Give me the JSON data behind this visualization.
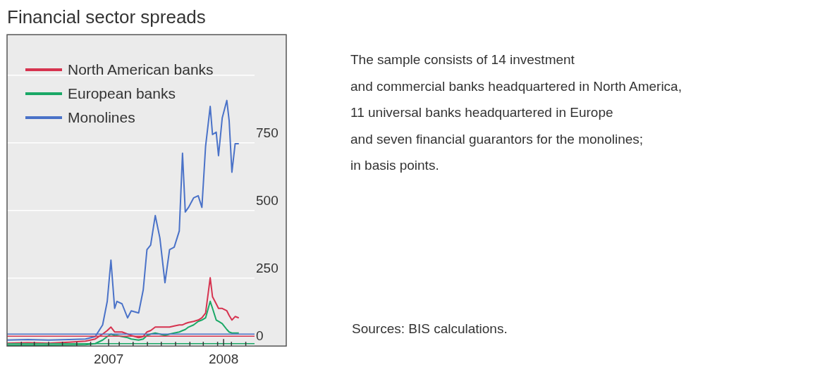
{
  "chart_data": {
    "type": "line",
    "title": "Financial sector spreads",
    "x": [
      "2007-01-01",
      "2007-02-15",
      "2007-04-01",
      "2007-05-15",
      "2007-06-20",
      "2007-07-11",
      "2007-07-27",
      "2007-08-06",
      "2007-08-14",
      "2007-08-22",
      "2007-08-27",
      "2007-09-07",
      "2007-09-19",
      "2007-09-27",
      "2007-10-13",
      "2007-10-23",
      "2007-10-31",
      "2007-11-08",
      "2007-11-18",
      "2007-11-28",
      "2007-12-09",
      "2007-12-19",
      "2007-12-29",
      "2008-01-09",
      "2008-01-16",
      "2008-01-22",
      "2008-01-29",
      "2008-02-09",
      "2008-02-19",
      "2008-02-27",
      "2008-03-06",
      "2008-03-16",
      "2008-03-21",
      "2008-03-29",
      "2008-04-03",
      "2008-04-11",
      "2008-04-21",
      "2008-04-26",
      "2008-05-02",
      "2008-05-09",
      "2008-05-17"
    ],
    "series": [
      {
        "name": "North American banks",
        "color": "#d6334f",
        "values": [
          10,
          12,
          10,
          14,
          18,
          26,
          44,
          57,
          70,
          52,
          52,
          52,
          44,
          39,
          31,
          35,
          52,
          57,
          70,
          70,
          70,
          70,
          74,
          78,
          78,
          83,
          87,
          91,
          96,
          104,
          122,
          252,
          182,
          156,
          139,
          139,
          130,
          113,
          96,
          109,
          104
        ]
      },
      {
        "name": "European banks",
        "color": "#1aa866",
        "values": [
          3,
          4,
          3,
          4,
          5,
          9,
          22,
          35,
          44,
          39,
          39,
          35,
          31,
          26,
          22,
          26,
          39,
          44,
          48,
          44,
          39,
          44,
          48,
          52,
          57,
          61,
          70,
          78,
          91,
          96,
          104,
          165,
          139,
          96,
          91,
          83,
          61,
          52,
          48,
          48,
          48
        ]
      },
      {
        "name": "Monolines",
        "color": "#4a72c8",
        "values": [
          22,
          24,
          22,
          24,
          26,
          35,
          78,
          165,
          317,
          139,
          165,
          156,
          104,
          130,
          122,
          208,
          356,
          373,
          482,
          399,
          234,
          356,
          365,
          425,
          712,
          495,
          512,
          547,
          555,
          512,
          738,
          885,
          781,
          790,
          703,
          842,
          907,
          833,
          642,
          747,
          747
        ]
      }
    ],
    "ref_lines": [
      {
        "axis": "y",
        "value": 44,
        "color": "#4a72c8"
      },
      {
        "axis": "y",
        "value": 36,
        "color": "#d6334f"
      },
      {
        "axis": "y",
        "value": 9,
        "color": "#1aa866"
      }
    ],
    "xlim": [
      "2007-01-01",
      "2008-06-20"
    ],
    "xticks": [
      {
        "value": "2007-02-01",
        "label": null
      },
      {
        "value": "2007-03-01",
        "label": null
      },
      {
        "value": "2007-04-01",
        "label": null
      },
      {
        "value": "2007-05-01",
        "label": null
      },
      {
        "value": "2007-06-01",
        "label": null
      },
      {
        "value": "2007-07-01",
        "label": null
      },
      {
        "value": "2007-08-09",
        "label": "2007"
      },
      {
        "value": "2007-09-01",
        "label": null
      },
      {
        "value": "2007-10-01",
        "label": null
      },
      {
        "value": "2007-11-01",
        "label": null
      },
      {
        "value": "2007-12-01",
        "label": null
      },
      {
        "value": "2008-01-01",
        "label": null
      },
      {
        "value": "2008-02-01",
        "label": null
      },
      {
        "value": "2008-03-01",
        "label": null
      },
      {
        "value": "2008-04-01",
        "label": null
      },
      {
        "value": "2008-04-14",
        "label": "2008"
      },
      {
        "value": "2008-05-01",
        "label": null
      },
      {
        "value": "2008-06-01",
        "label": null
      }
    ],
    "ylim": [
      0,
      1150
    ],
    "yticks": [
      0,
      250,
      500,
      750,
      {
        "value": 1000,
        "label": null
      }
    ],
    "grid": "y",
    "legend": "top left",
    "annotations": [
      "The sample consists of 14 investment\nand commercial banks headquartered in North America,\n11 universal banks headquartered in Europe\nand seven financial guarantors for the monolines;\nin basis points.",
      "Sources: BIS calculations."
    ]
  }
}
